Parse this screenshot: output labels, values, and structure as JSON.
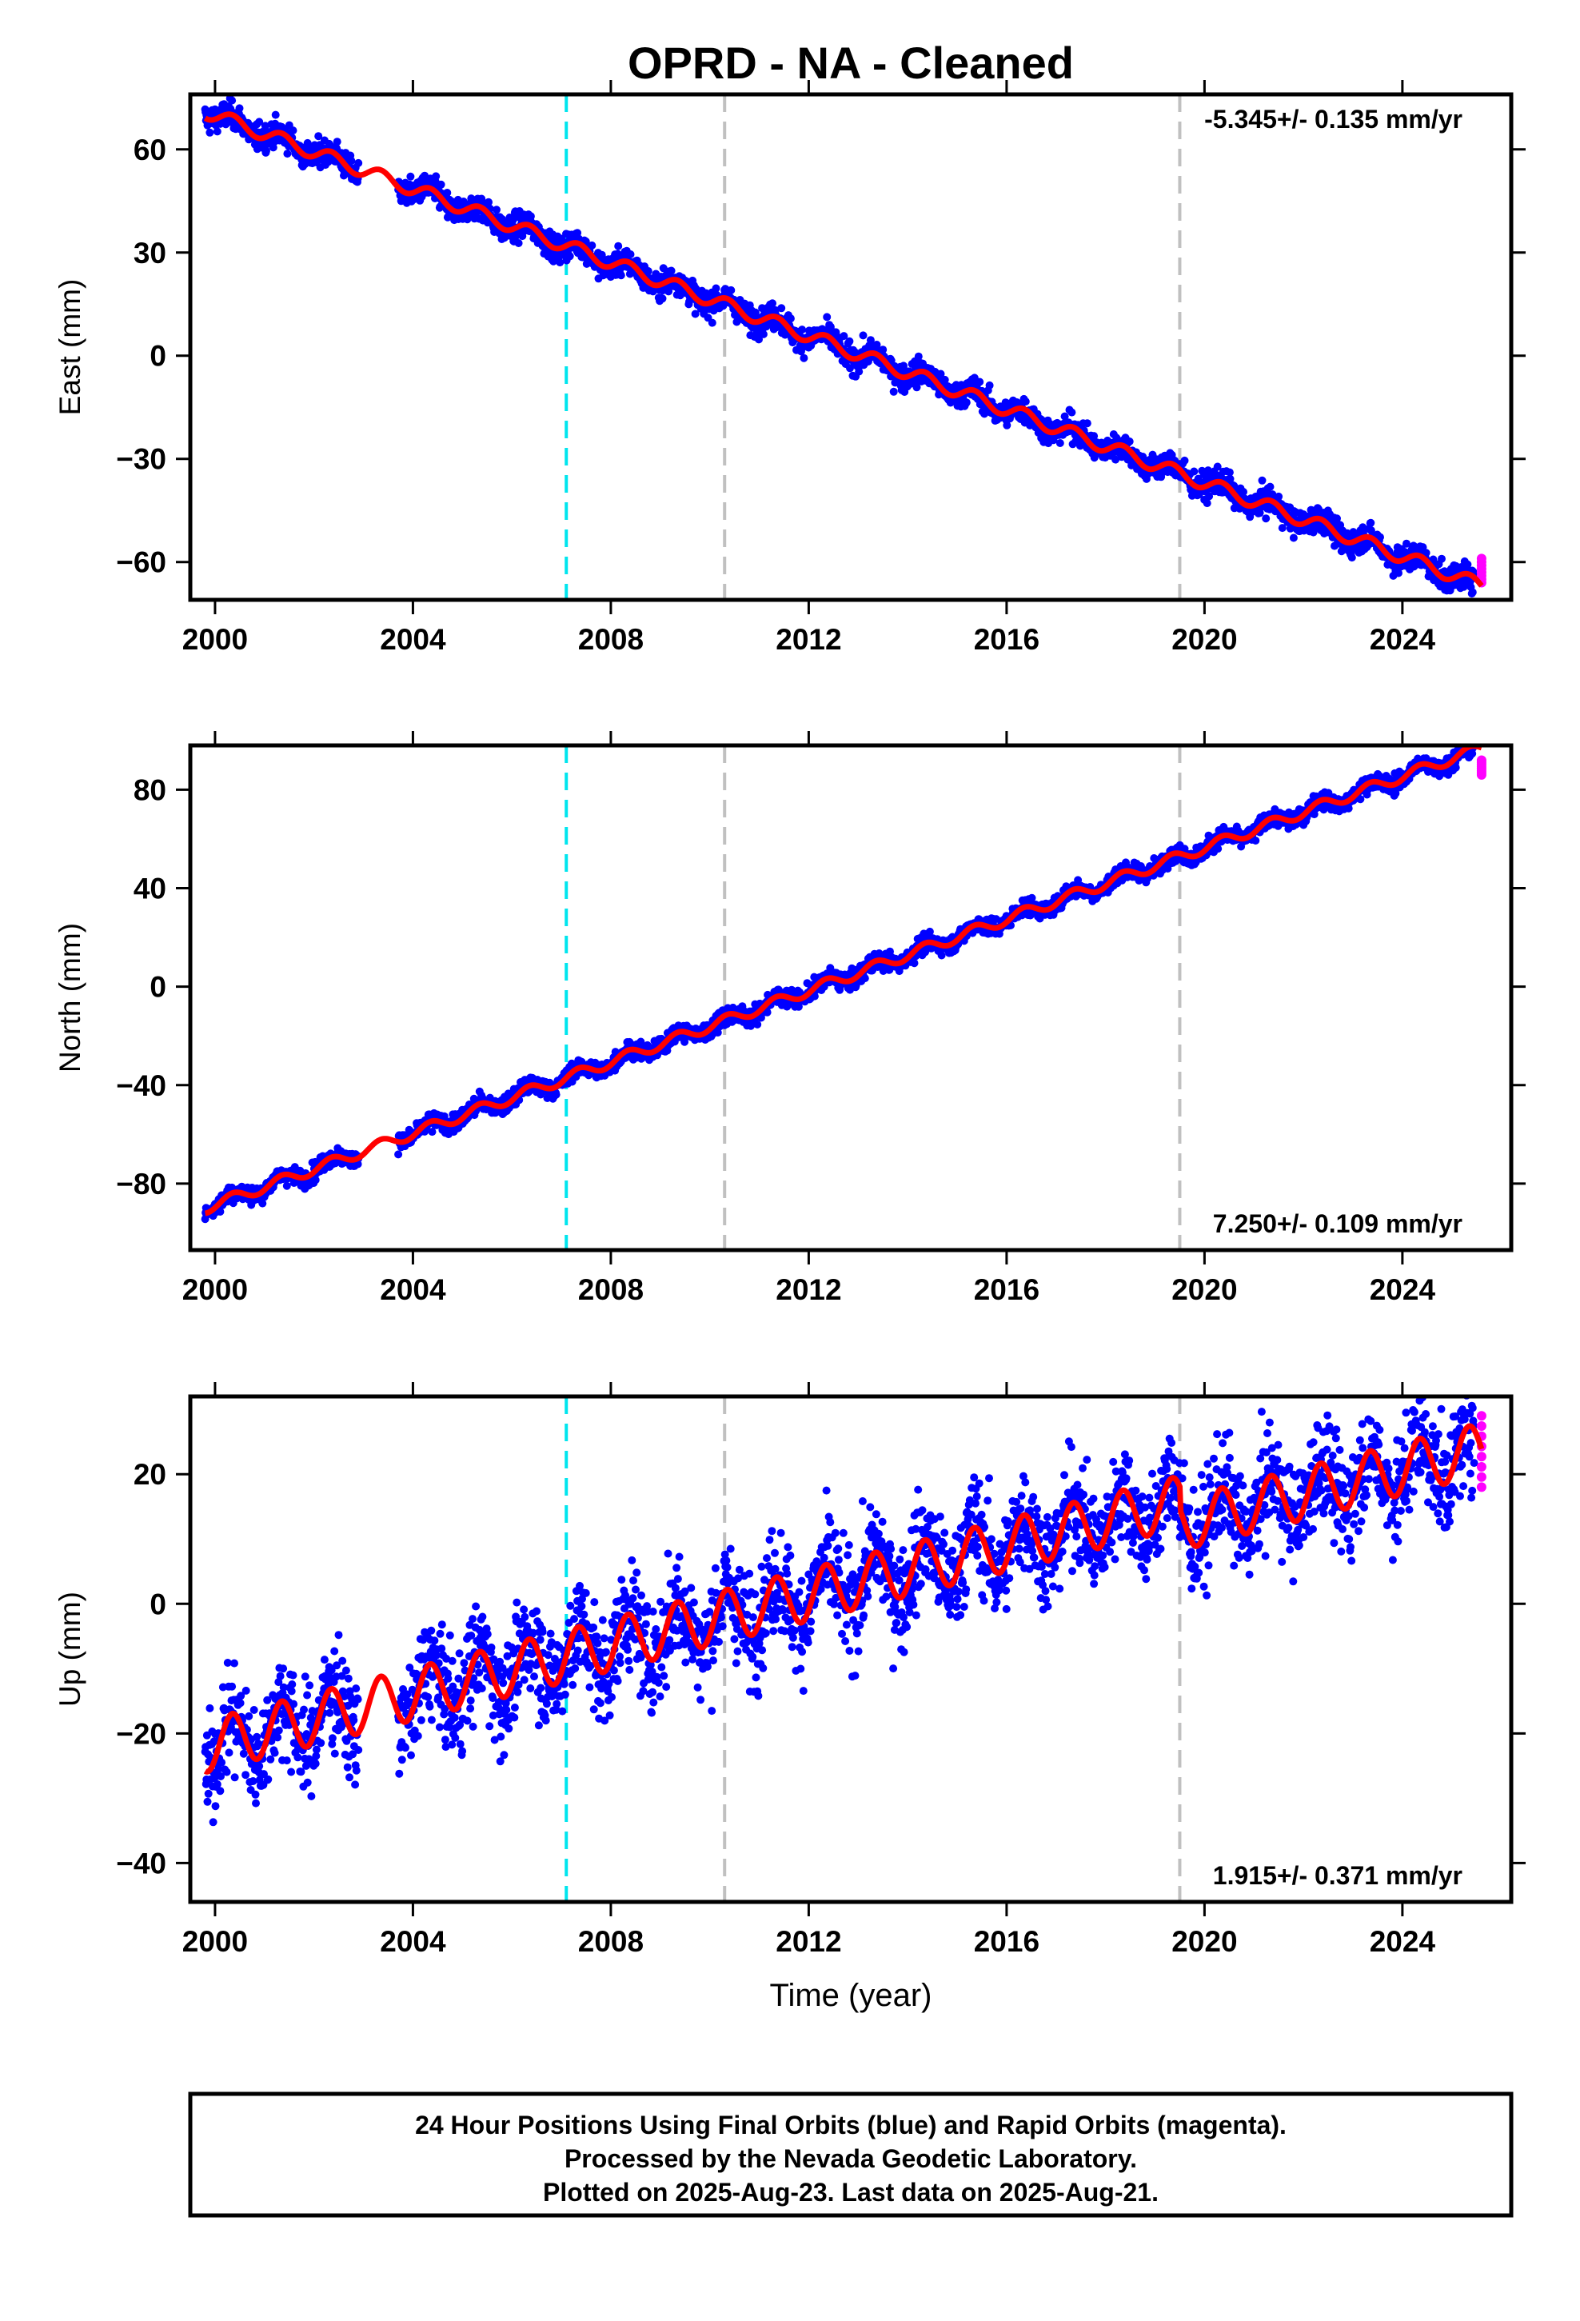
{
  "chart_data": {
    "type": "scatter",
    "title": "OPRD  - NA - Cleaned",
    "xlabel": "Time (year)",
    "xlim": [
      1999.5,
      2026.2
    ],
    "x_ticks": [
      "2000",
      "2004",
      "2008",
      "2012",
      "2016",
      "2020",
      "2024"
    ],
    "vertical_markers": [
      {
        "x": 2007.1,
        "color": "#00e5ee",
        "style": "dashed"
      },
      {
        "x": 2010.3,
        "color": "#c0c0c0",
        "style": "dashed"
      },
      {
        "x": 2019.5,
        "color": "#c0c0c0",
        "style": "dashed"
      }
    ],
    "series_colors": {
      "final": "#0000ff",
      "rapid": "#ff00ff",
      "model": "#ff0000"
    },
    "data_span": [
      1999.8,
      2025.6
    ],
    "rapid_span": [
      2025.45,
      2025.6
    ],
    "panels": [
      {
        "ylabel": "East (mm)",
        "ylim": [
          -71,
          76
        ],
        "y_ticks": [
          "60",
          "30",
          "0",
          "−30",
          "−60"
        ],
        "rate_text": "-5.345+/- 0.135 mm/yr",
        "rate_position": "top-right",
        "model": {
          "start": 1999.8,
          "end": 2025.6,
          "value_at_start": 71,
          "rate": -5.345,
          "annual_amplitude": 2.0,
          "offset_at_2010_3": 0,
          "offset_at_2019_5": 0,
          "gap_years": [
            2002.9,
            2003.7
          ]
        },
        "scatter_sd": 1.9,
        "rapid_values": [
          -59,
          -66
        ]
      },
      {
        "ylabel": "North (mm)",
        "ylim": [
          -107,
          98
        ],
        "y_ticks": [
          "80",
          "40",
          "0",
          "−40",
          "−80"
        ],
        "rate_text": "7.250+/- 0.109 mm/yr",
        "rate_position": "bottom-right",
        "model": {
          "start": 1999.8,
          "end": 2025.6,
          "value_at_start": -90,
          "rate": 7.25,
          "annual_amplitude": 2.2,
          "offset_at_2010_3": 0,
          "offset_at_2019_5": 0,
          "gap_years": [
            2002.9,
            2003.7
          ]
        },
        "scatter_sd": 1.8,
        "rapid_values": [
          86,
          92
        ]
      },
      {
        "ylabel": "Up (mm)",
        "ylim": [
          -46,
          32
        ],
        "y_ticks": [
          "20",
          "0",
          "−20",
          "−40"
        ],
        "rate_text": "1.915+/- 0.371 mm/yr",
        "rate_position": "bottom-right",
        "model": {
          "start": 1999.8,
          "end": 2025.6,
          "value_at_start": -22,
          "rate": 1.915,
          "annual_amplitude": 4.0,
          "offset_at_2010_3": 0,
          "offset_at_2019_5": -3.5,
          "gap_years": [
            2002.9,
            2003.7
          ]
        },
        "scatter_sd": 4.0,
        "rapid_values": [
          18,
          29
        ]
      }
    ],
    "footer_lines": [
      "24 Hour Positions Using Final Orbits (blue) and Rapid Orbits (magenta).",
      "Processed by the Nevada Geodetic Laboratory.",
      "Plotted on 2025-Aug-23. Last data on 2025-Aug-21."
    ]
  }
}
